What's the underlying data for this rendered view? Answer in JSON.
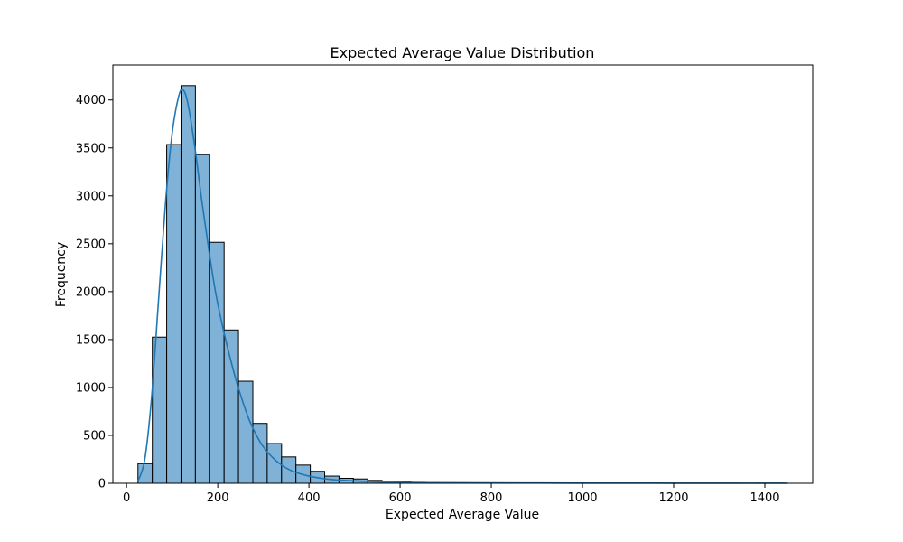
{
  "chart_data": {
    "type": "bar",
    "subtype": "histogram-with-kde",
    "title": "Expected Average Value Distribution",
    "xlabel": "Expected Average Value",
    "ylabel": "Frequency",
    "xlim": [
      -30,
      1505
    ],
    "ylim": [
      0,
      4365
    ],
    "x_ticks": [
      0,
      200,
      400,
      600,
      800,
      1000,
      1200,
      1400
    ],
    "y_ticks": [
      0,
      500,
      1000,
      1500,
      2000,
      2500,
      3000,
      3500,
      4000
    ],
    "grid": false,
    "legend": "none",
    "bar_color": "#7FB2D6",
    "bar_edge_color": "#000000",
    "kde_color": "#1F77B4",
    "bin_edges": [
      25,
      56.5,
      88,
      119.5,
      151,
      182.5,
      214,
      245.5,
      277,
      308.5,
      340,
      371.5,
      403,
      434.5,
      466,
      497.5,
      529,
      560.5,
      592,
      623.5,
      655,
      686.5,
      718,
      749.5,
      781,
      812.5,
      844,
      875.5,
      907,
      938.5,
      970,
      1001.5,
      1033,
      1064.5,
      1096,
      1127.5,
      1159,
      1190.5,
      1222,
      1253.5,
      1285,
      1316.5,
      1348,
      1379.5,
      1411,
      1442.5
    ],
    "counts": [
      205,
      1525,
      3535,
      4150,
      3430,
      2515,
      1600,
      1065,
      625,
      415,
      275,
      190,
      125,
      75,
      52,
      45,
      30,
      22,
      15,
      10,
      8,
      6,
      5,
      4,
      4,
      3,
      3,
      2,
      2,
      2,
      2,
      2,
      1,
      1,
      1,
      1,
      1,
      1,
      1,
      1,
      1,
      1,
      0,
      1,
      1
    ],
    "kde": {
      "x": [
        25,
        40,
        55,
        70,
        85,
        100,
        115,
        125,
        135,
        150,
        165,
        180,
        195,
        210,
        225,
        240,
        255,
        270,
        285,
        300,
        320,
        340,
        360,
        380,
        400,
        430,
        460,
        500,
        550,
        600,
        700,
        800,
        900,
        1000,
        1100,
        1200,
        1300,
        1400,
        1450
      ],
      "y": [
        20,
        250,
        900,
        1900,
        2900,
        3650,
        4050,
        4100,
        3950,
        3500,
        2950,
        2450,
        2000,
        1650,
        1350,
        1080,
        850,
        650,
        500,
        380,
        270,
        190,
        135,
        100,
        75,
        50,
        35,
        25,
        15,
        10,
        6,
        4,
        3,
        2,
        2,
        1,
        1,
        1,
        1
      ]
    }
  }
}
